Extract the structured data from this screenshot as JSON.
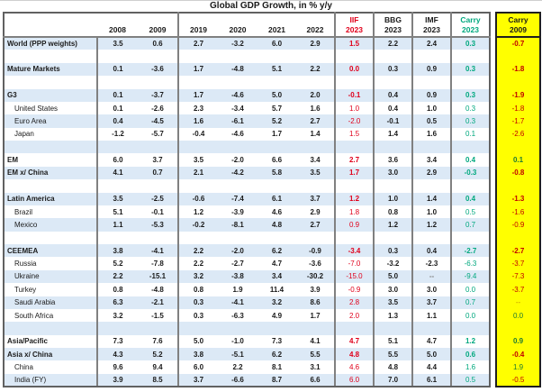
{
  "title": "Global GDP Growth, in % y/y",
  "colors": {
    "stripe_blue": "#DCE9F6",
    "border_gray": "#808080",
    "border_dark": "#616161",
    "iif_red": "#E0001B",
    "carry_green": "#00A87E",
    "highlight_yellow": "#FFFF00",
    "carry09_negative": "#C00000",
    "carry09_positive": "#1E7A33",
    "carry09_na": "#BF8F00",
    "na_gray": "#7F7F7F",
    "text_black": "#1A1A1A"
  },
  "chart_data": {
    "type": "table",
    "title": "Global GDP Growth, in % y/y",
    "columns": [
      "",
      "2008",
      "2009",
      "2019",
      "2020",
      "2021",
      "2022",
      "IIF 2023",
      "BBG 2023",
      "IMF 2023",
      "Carry 2023",
      "Carry 2009"
    ],
    "header": {
      "years": [
        "2008",
        "2009",
        "2019",
        "2020",
        "2021",
        "2022"
      ],
      "forecasts": [
        {
          "source": "IIF",
          "year": "2023",
          "color_key": "iif_red"
        },
        {
          "source": "BBG",
          "year": "2023",
          "color_key": "text_black"
        },
        {
          "source": "IMF",
          "year": "2023",
          "color_key": "text_black"
        },
        {
          "source": "Carry",
          "year": "2023",
          "color_key": "carry_green"
        }
      ],
      "carry09": {
        "source": "Carry",
        "year": "2009"
      }
    },
    "rows": [
      {
        "label": "World (PPP weights)",
        "bold": true,
        "values": [
          "3.5",
          "0.6",
          "2.7",
          "-3.2",
          "6.0",
          "2.9",
          "1.5",
          "2.2",
          "2.4",
          "0.3",
          "-0.7"
        ]
      },
      {
        "blank": true
      },
      {
        "label": "Mature Markets",
        "bold": true,
        "values": [
          "0.1",
          "-3.6",
          "1.7",
          "-4.8",
          "5.1",
          "2.2",
          "0.0",
          "0.3",
          "0.9",
          "0.3",
          "-1.8"
        ]
      },
      {
        "blank": true
      },
      {
        "label": "G3",
        "bold": true,
        "values": [
          "0.1",
          "-3.7",
          "1.7",
          "-4.6",
          "5.0",
          "2.0",
          "-0.1",
          "0.4",
          "0.9",
          "0.3",
          "-1.9"
        ]
      },
      {
        "label": "United States",
        "bold": false,
        "values": [
          "0.1",
          "-2.6",
          "2.3",
          "-3.4",
          "5.7",
          "1.6",
          "1.0",
          "0.4",
          "1.0",
          "0.3",
          "-1.8"
        ]
      },
      {
        "label": "Euro Area",
        "bold": false,
        "values": [
          "0.4",
          "-4.5",
          "1.6",
          "-6.1",
          "5.2",
          "2.7",
          "-2.0",
          "-0.1",
          "0.5",
          "0.3",
          "-1.7"
        ]
      },
      {
        "label": "Japan",
        "bold": false,
        "values": [
          "-1.2",
          "-5.7",
          "-0.4",
          "-4.6",
          "1.7",
          "1.4",
          "1.5",
          "1.4",
          "1.6",
          "0.1",
          "-2.6"
        ]
      },
      {
        "blank": true
      },
      {
        "label": "EM",
        "bold": true,
        "values": [
          "6.0",
          "3.7",
          "3.5",
          "-2.0",
          "6.6",
          "3.4",
          "2.7",
          "3.6",
          "3.4",
          "0.4",
          "0.1"
        ]
      },
      {
        "label": "EM x/ China",
        "bold": true,
        "values": [
          "4.1",
          "0.7",
          "2.1",
          "-4.2",
          "5.8",
          "3.5",
          "1.7",
          "3.0",
          "2.9",
          "-0.3",
          "-0.8"
        ]
      },
      {
        "blank": true
      },
      {
        "label": "Latin America",
        "bold": true,
        "values": [
          "3.5",
          "-2.5",
          "-0.6",
          "-7.4",
          "6.1",
          "3.7",
          "1.2",
          "1.0",
          "1.4",
          "0.4",
          "-1.3"
        ]
      },
      {
        "label": "Brazil",
        "bold": false,
        "values": [
          "5.1",
          "-0.1",
          "1.2",
          "-3.9",
          "4.6",
          "2.9",
          "1.8",
          "0.8",
          "1.0",
          "0.5",
          "-1.6"
        ]
      },
      {
        "label": "Mexico",
        "bold": false,
        "values": [
          "1.1",
          "-5.3",
          "-0.2",
          "-8.1",
          "4.8",
          "2.7",
          "0.9",
          "1.2",
          "1.2",
          "0.7",
          "-0.9"
        ]
      },
      {
        "blank": true
      },
      {
        "label": "CEEMEA",
        "bold": true,
        "values": [
          "3.8",
          "-4.1",
          "2.2",
          "-2.0",
          "6.2",
          "-0.9",
          "-3.4",
          "0.3",
          "0.4",
          "-2.7",
          "-2.7"
        ]
      },
      {
        "label": "Russia",
        "bold": false,
        "values": [
          "5.2",
          "-7.8",
          "2.2",
          "-2.7",
          "4.7",
          "-3.6",
          "-7.0",
          "-3.2",
          "-2.3",
          "-6.3",
          "-3.7"
        ]
      },
      {
        "label": "Ukraine",
        "bold": false,
        "values": [
          "2.2",
          "-15.1",
          "3.2",
          "-3.8",
          "3.4",
          "-30.2",
          "-15.0",
          "5.0",
          "--",
          "-9.4",
          "-7.3"
        ]
      },
      {
        "label": "Turkey",
        "bold": false,
        "values": [
          "0.8",
          "-4.8",
          "0.8",
          "1.9",
          "11.4",
          "3.9",
          "-0.9",
          "3.0",
          "3.0",
          "0.0",
          "-3.7"
        ]
      },
      {
        "label": "Saudi Arabia",
        "bold": false,
        "values": [
          "6.3",
          "-2.1",
          "0.3",
          "-4.1",
          "3.2",
          "8.6",
          "2.8",
          "3.5",
          "3.7",
          "0.7",
          "--"
        ]
      },
      {
        "label": "South Africa",
        "bold": false,
        "values": [
          "3.2",
          "-1.5",
          "0.3",
          "-6.3",
          "4.9",
          "1.7",
          "2.0",
          "1.3",
          "1.1",
          "0.0",
          "0.0"
        ]
      },
      {
        "blank": true
      },
      {
        "label": "Asia/Pacific",
        "bold": true,
        "values": [
          "7.3",
          "7.6",
          "5.0",
          "-1.0",
          "7.3",
          "4.1",
          "4.7",
          "5.1",
          "4.7",
          "1.2",
          "0.9"
        ]
      },
      {
        "label": "Asia x/ China",
        "bold": true,
        "values": [
          "4.3",
          "5.2",
          "3.8",
          "-5.1",
          "6.2",
          "5.5",
          "4.8",
          "5.5",
          "5.0",
          "0.6",
          "-0.4"
        ]
      },
      {
        "label": "China",
        "bold": false,
        "values": [
          "9.6",
          "9.4",
          "6.0",
          "2.2",
          "8.1",
          "3.1",
          "4.6",
          "4.8",
          "4.4",
          "1.6",
          "1.9"
        ]
      },
      {
        "label": "India (FY)",
        "bold": false,
        "values": [
          "3.9",
          "8.5",
          "3.7",
          "-6.6",
          "8.7",
          "6.6",
          "6.0",
          "7.0",
          "6.1",
          "0.5",
          "-0.5"
        ]
      }
    ]
  }
}
